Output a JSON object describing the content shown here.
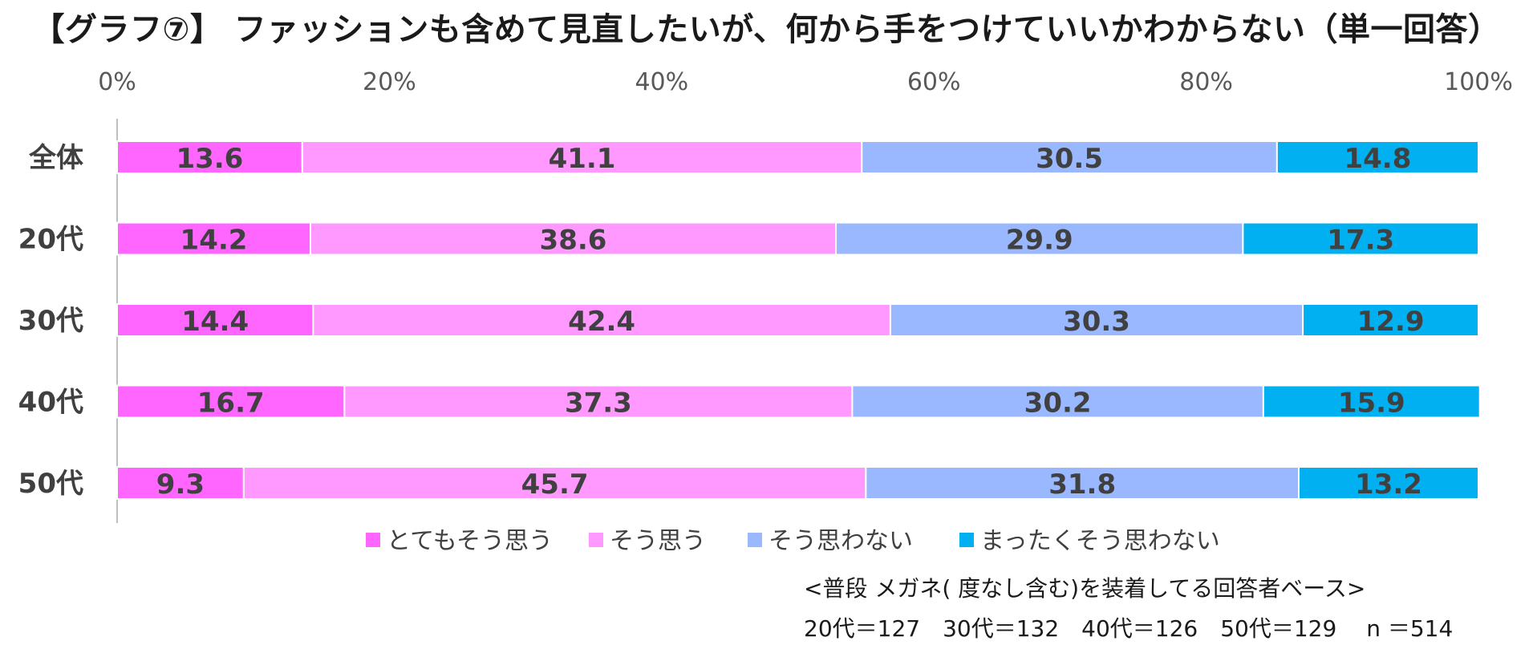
{
  "chart_data": {
    "type": "bar",
    "orientation": "horizontal-stacked-100",
    "title": "【グラフ⑦】 ファッションも含めて見直したいが、何から手をつけていいかわからない（単一回答）",
    "categories": [
      "全体",
      "20代",
      "30代",
      "40代",
      "50代"
    ],
    "xlim": [
      0,
      100
    ],
    "x_ticks": [
      "0%",
      "20%",
      "40%",
      "60%",
      "80%",
      "100%"
    ],
    "series": [
      {
        "name": "とてもそう思う",
        "color": "#ff66ff",
        "values": [
          13.6,
          14.2,
          14.4,
          16.7,
          9.3
        ]
      },
      {
        "name": "そう思う",
        "color": "#ff99ff",
        "values": [
          41.1,
          38.6,
          42.4,
          37.3,
          45.7
        ]
      },
      {
        "name": "そう思わない",
        "color": "#99b8ff",
        "values": [
          30.5,
          29.9,
          30.3,
          30.2,
          31.8
        ]
      },
      {
        "name": "まったくそう思わない",
        "color": "#00b0f0",
        "values": [
          14.8,
          17.3,
          12.9,
          15.9,
          13.2
        ]
      }
    ],
    "legend_position": "bottom",
    "grid": false
  },
  "notes": {
    "base": "<普段 メガネ(  度なし含む)を装着してる回答者ベース>",
    "sample_sizes": "20代＝127　30代＝132　40代＝126　50代＝129　 n ＝514"
  }
}
